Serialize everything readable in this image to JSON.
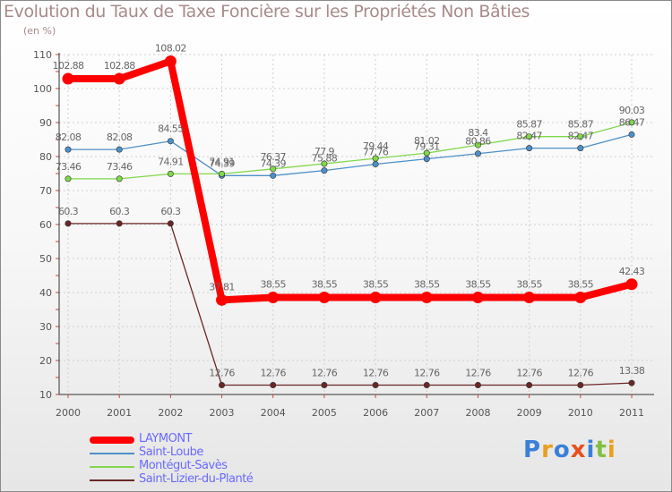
{
  "title": "Evolution du Taux de Taxe Foncière sur les Propriétés Non Bâties",
  "unit": "(en %)",
  "logo_text": "Proxiti",
  "chart_data": {
    "type": "line",
    "title": "Evolution du Taux de Taxe Foncière sur les Propriétés Non Bâties",
    "ylabel": "(en %)",
    "xlabel": "",
    "x": [
      "2000",
      "2001",
      "2002",
      "2003",
      "2004",
      "2005",
      "2006",
      "2007",
      "2008",
      "2009",
      "2010",
      "2011"
    ],
    "ylim": [
      10,
      110
    ],
    "yticks": [
      "10",
      "20",
      "30",
      "40",
      "50",
      "60",
      "70",
      "80",
      "90",
      "100",
      "110"
    ],
    "series": [
      {
        "name": "LAYMONT",
        "color": "#ff0000",
        "values": [
          102.88,
          102.88,
          108.02,
          37.81,
          38.55,
          38.55,
          38.55,
          38.55,
          38.55,
          38.55,
          38.55,
          42.43
        ],
        "labels": [
          "102.88",
          "102.88",
          "108.02",
          "37.81",
          "38.55",
          "38.55",
          "38.55",
          "38.55",
          "38.55",
          "38.55",
          "38.55",
          "42.43"
        ]
      },
      {
        "name": "Saint-Loube",
        "color": "#4d90c8",
        "values": [
          82.08,
          82.08,
          84.55,
          74.39,
          74.39,
          75.88,
          77.76,
          79.31,
          80.86,
          82.47,
          82.47,
          86.47
        ],
        "labels": [
          "82.08",
          "82.08",
          "84.55",
          "74.39",
          "74.39",
          "75.88",
          "77.76",
          "79.31",
          "80.86",
          "82.47",
          "82.47",
          "86.47"
        ]
      },
      {
        "name": "Montégut-Savès",
        "color": "#80d84a",
        "values": [
          73.46,
          73.46,
          74.91,
          74.91,
          76.37,
          77.9,
          79.44,
          81.02,
          83.4,
          85.87,
          85.87,
          90.03
        ],
        "labels": [
          "73.46",
          "73.46",
          "74.91",
          "74.91",
          "76.37",
          "77.9",
          "79.44",
          "81.02",
          "83.4",
          "85.87",
          "85.87",
          "90.03"
        ]
      },
      {
        "name": "Saint-Lizier-du-Planté",
        "color": "#6b2626",
        "values": [
          60.3,
          60.3,
          60.3,
          12.76,
          12.76,
          12.76,
          12.76,
          12.76,
          12.76,
          12.76,
          12.76,
          13.38
        ],
        "labels": [
          "60.3",
          "60.3",
          "60.3",
          "12.76",
          "12.76",
          "12.76",
          "12.76",
          "12.76",
          "12.76",
          "12.76",
          "12.76",
          "13.38"
        ]
      }
    ]
  }
}
